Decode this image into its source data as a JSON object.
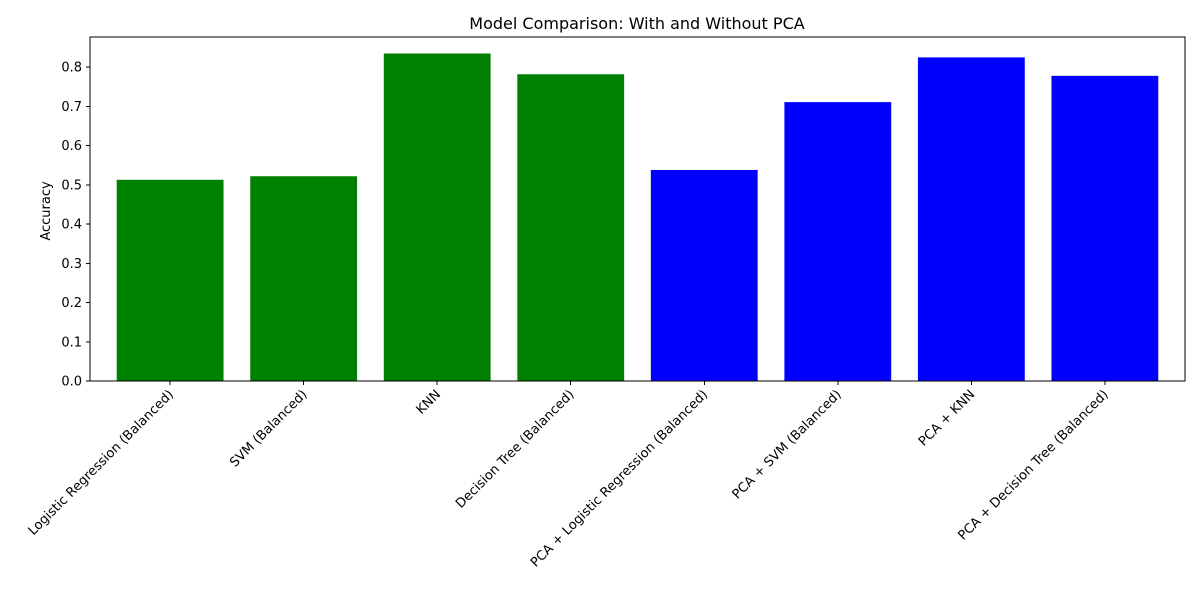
{
  "chart_data": {
    "type": "bar",
    "title": "Model Comparison: With and Without PCA",
    "xlabel": "",
    "ylabel": "Accuracy",
    "categories": [
      "Logistic Regression (Balanced)",
      "SVM (Balanced)",
      "KNN",
      "Decision Tree (Balanced)",
      "PCA + Logistic Regression (Balanced)",
      "PCA + SVM (Balanced)",
      "PCA + KNN",
      "PCA + Decision Tree (Balanced)"
    ],
    "values": [
      0.513,
      0.522,
      0.835,
      0.782,
      0.538,
      0.711,
      0.825,
      0.778
    ],
    "colors": [
      "#008000",
      "#008000",
      "#008000",
      "#008000",
      "#0000ff",
      "#0000ff",
      "#0000ff",
      "#0000ff"
    ],
    "ylim": [
      0,
      0.877
    ],
    "yticks": [
      0.0,
      0.1,
      0.2,
      0.3,
      0.4,
      0.5,
      0.6,
      0.7,
      0.8
    ],
    "ytick_labels": [
      "0.0",
      "0.1",
      "0.2",
      "0.3",
      "0.4",
      "0.5",
      "0.6",
      "0.7",
      "0.8"
    ],
    "grid": false,
    "legend": "none"
  }
}
